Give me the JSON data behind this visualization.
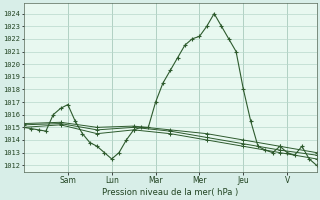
{
  "bg_color": "#d8eee8",
  "plot_bg_color": "#e8f8f0",
  "grid_color": "#b8d8cc",
  "line_color": "#2d5a2d",
  "marker_color": "#2d5a2d",
  "xlabel": "Pression niveau de la mer( hPa )",
  "ylim": [
    1011.5,
    1024.8
  ],
  "yticks": [
    1012,
    1013,
    1014,
    1015,
    1016,
    1017,
    1018,
    1019,
    1020,
    1021,
    1022,
    1023,
    1024
  ],
  "day_labels": [
    "Sam",
    "Lun",
    "Mar",
    "Mer",
    "Jeu",
    "V"
  ],
  "day_tick_positions": [
    18,
    36,
    54,
    72,
    90,
    108
  ],
  "xlim": [
    0,
    120
  ],
  "series1_x": [
    0,
    3,
    6,
    9,
    12,
    15,
    18,
    21,
    24,
    27,
    30,
    33,
    36,
    39,
    42,
    45,
    48,
    51,
    54,
    57,
    60,
    63,
    66,
    69,
    72,
    75,
    78,
    81,
    84,
    87,
    90,
    93,
    96,
    99,
    102,
    105,
    108,
    111,
    114,
    117,
    120
  ],
  "series1_y": [
    1015.0,
    1014.9,
    1014.8,
    1014.7,
    1016.0,
    1016.5,
    1016.8,
    1015.5,
    1014.5,
    1013.8,
    1013.5,
    1013.0,
    1012.5,
    1013.0,
    1014.0,
    1014.8,
    1015.0,
    1015.0,
    1017.0,
    1018.5,
    1019.5,
    1020.5,
    1021.5,
    1022.0,
    1022.2,
    1023.0,
    1024.0,
    1023.0,
    1022.0,
    1021.0,
    1018.0,
    1015.5,
    1013.5,
    1013.2,
    1013.0,
    1013.5,
    1013.0,
    1012.8,
    1013.5,
    1012.5,
    1012.0
  ],
  "series2_x": [
    0,
    15,
    30,
    45,
    60,
    75,
    90,
    105,
    120
  ],
  "series2_y": [
    1015.0,
    1015.2,
    1014.5,
    1014.8,
    1014.5,
    1014.0,
    1013.5,
    1013.0,
    1012.5
  ],
  "series3_x": [
    0,
    15,
    30,
    45,
    60,
    75,
    90,
    105,
    120
  ],
  "series3_y": [
    1015.2,
    1015.3,
    1014.8,
    1015.0,
    1014.7,
    1014.2,
    1013.7,
    1013.2,
    1012.8
  ],
  "series4_x": [
    0,
    15,
    30,
    45,
    60,
    75,
    90,
    105,
    120
  ],
  "series4_y": [
    1015.3,
    1015.4,
    1015.0,
    1015.1,
    1014.8,
    1014.5,
    1014.0,
    1013.5,
    1013.0
  ]
}
